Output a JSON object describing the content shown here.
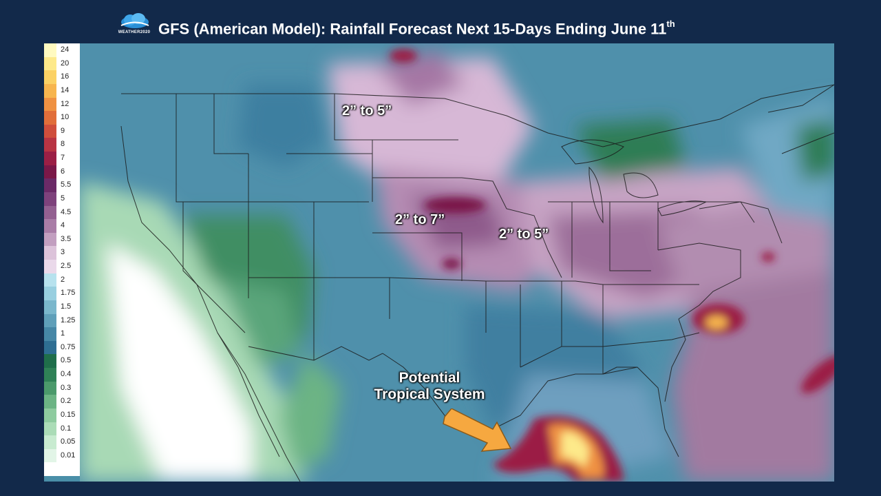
{
  "header": {
    "logo_text": "WEATHER2020",
    "title": "GFS (American Model): Rainfall Forecast Next 15-Days Ending June 11",
    "title_suffix": "th"
  },
  "legend": {
    "items": [
      {
        "label": "24",
        "color": "#fffac0"
      },
      {
        "label": "20",
        "color": "#fde98a"
      },
      {
        "label": "16",
        "color": "#fbd164"
      },
      {
        "label": "14",
        "color": "#f7b54e"
      },
      {
        "label": "12",
        "color": "#ef9142"
      },
      {
        "label": "10",
        "color": "#e16e3a"
      },
      {
        "label": "9",
        "color": "#cf4e3c"
      },
      {
        "label": "8",
        "color": "#b83443"
      },
      {
        "label": "7",
        "color": "#9b1f45"
      },
      {
        "label": "6",
        "color": "#7a1848"
      },
      {
        "label": "5.5",
        "color": "#6b2a67"
      },
      {
        "label": "5",
        "color": "#7e427c"
      },
      {
        "label": "4.5",
        "color": "#936091"
      },
      {
        "label": "4",
        "color": "#a97da7"
      },
      {
        "label": "3.5",
        "color": "#c29fc0"
      },
      {
        "label": "3",
        "color": "#dcc3da"
      },
      {
        "label": "2.5",
        "color": "#ead9ea"
      },
      {
        "label": "2",
        "color": "#b7e2ee"
      },
      {
        "label": "1.75",
        "color": "#98cfe0"
      },
      {
        "label": "1.5",
        "color": "#7ab7cc"
      },
      {
        "label": "1.25",
        "color": "#5f9fb9"
      },
      {
        "label": "1",
        "color": "#4687a6"
      },
      {
        "label": "0.75",
        "color": "#2e6e92"
      },
      {
        "label": "0.5",
        "color": "#1f6e4a"
      },
      {
        "label": "0.4",
        "color": "#2f8156"
      },
      {
        "label": "0.3",
        "color": "#4b9a6b"
      },
      {
        "label": "0.2",
        "color": "#6cb484"
      },
      {
        "label": "0.15",
        "color": "#8ecb9f"
      },
      {
        "label": "0.1",
        "color": "#abdcb7"
      },
      {
        "label": "0.05",
        "color": "#c8ebd0"
      },
      {
        "label": "0.01",
        "color": "#e2f5e7"
      },
      {
        "label": "",
        "color": "#ffffff"
      }
    ]
  },
  "annotations": {
    "north_plains": "2” to 5”",
    "central_plains": "2” to 7”",
    "midwest": "2” to 5”",
    "tropical_line1": "Potential",
    "tropical_line2": "Tropical System"
  },
  "colors": {
    "background": "#12294a",
    "arrow_fill": "#f6a840",
    "arrow_stroke": "#8a5a1a"
  }
}
